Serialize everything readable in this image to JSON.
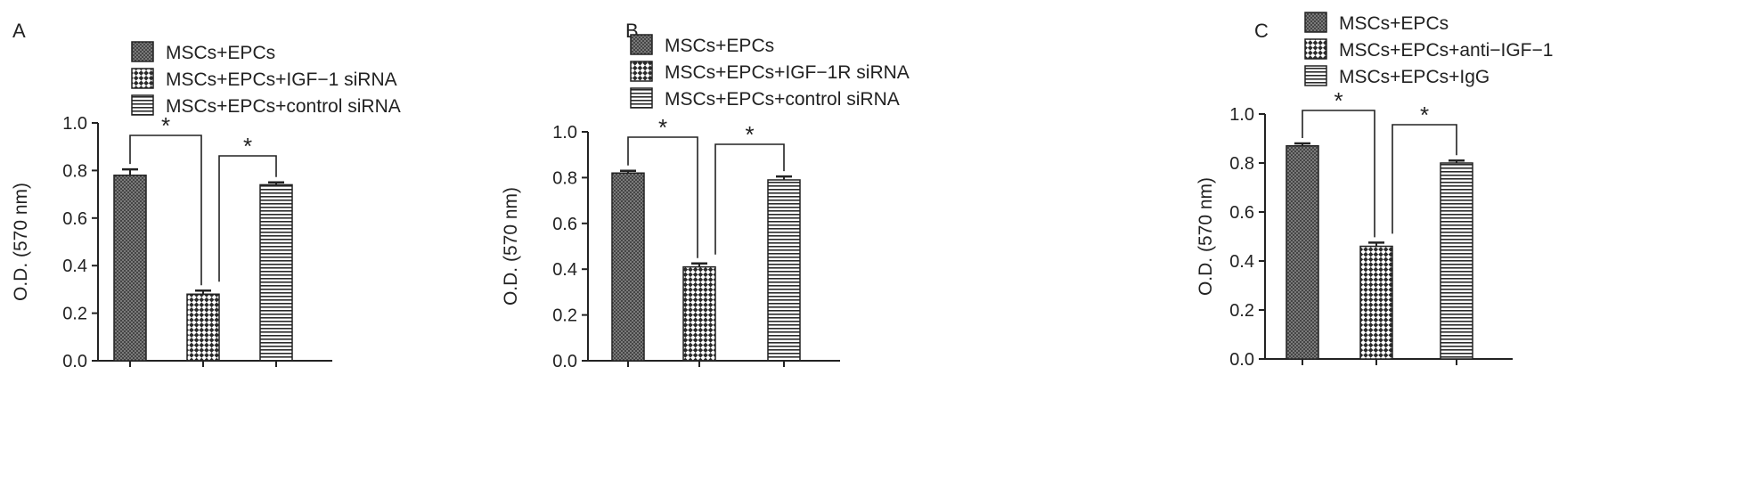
{
  "colors": {
    "ink": "#222222",
    "bar_fill": "#ffffff",
    "pattern_dense": "#3a3a3a",
    "pattern_checker": "#2a2a2a",
    "pattern_stripes": "#2a2a2a"
  },
  "chart_data": [
    {
      "panel": "A",
      "type": "bar",
      "ylabel": "O.D. (570 nm)",
      "ylim": [
        0,
        1.0
      ],
      "yticks": [
        "0.0",
        "0.2",
        "0.4",
        "0.6",
        "0.8",
        "1.0"
      ],
      "legend_position": "top",
      "series": [
        {
          "name": "MSCs+EPCs",
          "value": 0.78,
          "error": 0.025,
          "pattern": "dense"
        },
        {
          "name": "MSCs+EPCs+IGF−1 siRNA",
          "value": 0.28,
          "error": 0.015,
          "pattern": "checker"
        },
        {
          "name": "MSCs+EPCs+control siRNA",
          "value": 0.74,
          "error": 0.01,
          "pattern": "stripes"
        }
      ],
      "significance": [
        {
          "from": 0,
          "to": 1,
          "label": "*"
        },
        {
          "from": 1,
          "to": 2,
          "label": "*"
        }
      ]
    },
    {
      "panel": "B",
      "type": "bar",
      "ylabel": "O.D. (570 nm)",
      "ylim": [
        0,
        1.0
      ],
      "yticks": [
        "0.0",
        "0.2",
        "0.4",
        "0.6",
        "0.8",
        "1.0"
      ],
      "legend_position": "top",
      "series": [
        {
          "name": "MSCs+EPCs",
          "value": 0.82,
          "error": 0.01,
          "pattern": "dense"
        },
        {
          "name": "MSCs+EPCs+IGF−1R siRNA",
          "value": 0.41,
          "error": 0.015,
          "pattern": "checker"
        },
        {
          "name": "MSCs+EPCs+control siRNA",
          "value": 0.79,
          "error": 0.015,
          "pattern": "stripes"
        }
      ],
      "significance": [
        {
          "from": 0,
          "to": 1,
          "label": "*"
        },
        {
          "from": 1,
          "to": 2,
          "label": "*"
        }
      ]
    },
    {
      "panel": "C",
      "type": "bar",
      "ylabel": "O.D. (570 nm)",
      "ylim": [
        0,
        1.0
      ],
      "yticks": [
        "0.0",
        "0.2",
        "0.4",
        "0.6",
        "0.8",
        "1.0"
      ],
      "legend_position": "top",
      "series": [
        {
          "name": "MSCs+EPCs",
          "value": 0.87,
          "error": 0.01,
          "pattern": "dense"
        },
        {
          "name": "MSCs+EPCs+anti−IGF−1",
          "value": 0.46,
          "error": 0.015,
          "pattern": "checker"
        },
        {
          "name": "MSCs+EPCs+IgG",
          "value": 0.8,
          "error": 0.01,
          "pattern": "stripes"
        }
      ],
      "significance": [
        {
          "from": 0,
          "to": 1,
          "label": "*"
        },
        {
          "from": 1,
          "to": 2,
          "label": "*"
        }
      ]
    }
  ]
}
